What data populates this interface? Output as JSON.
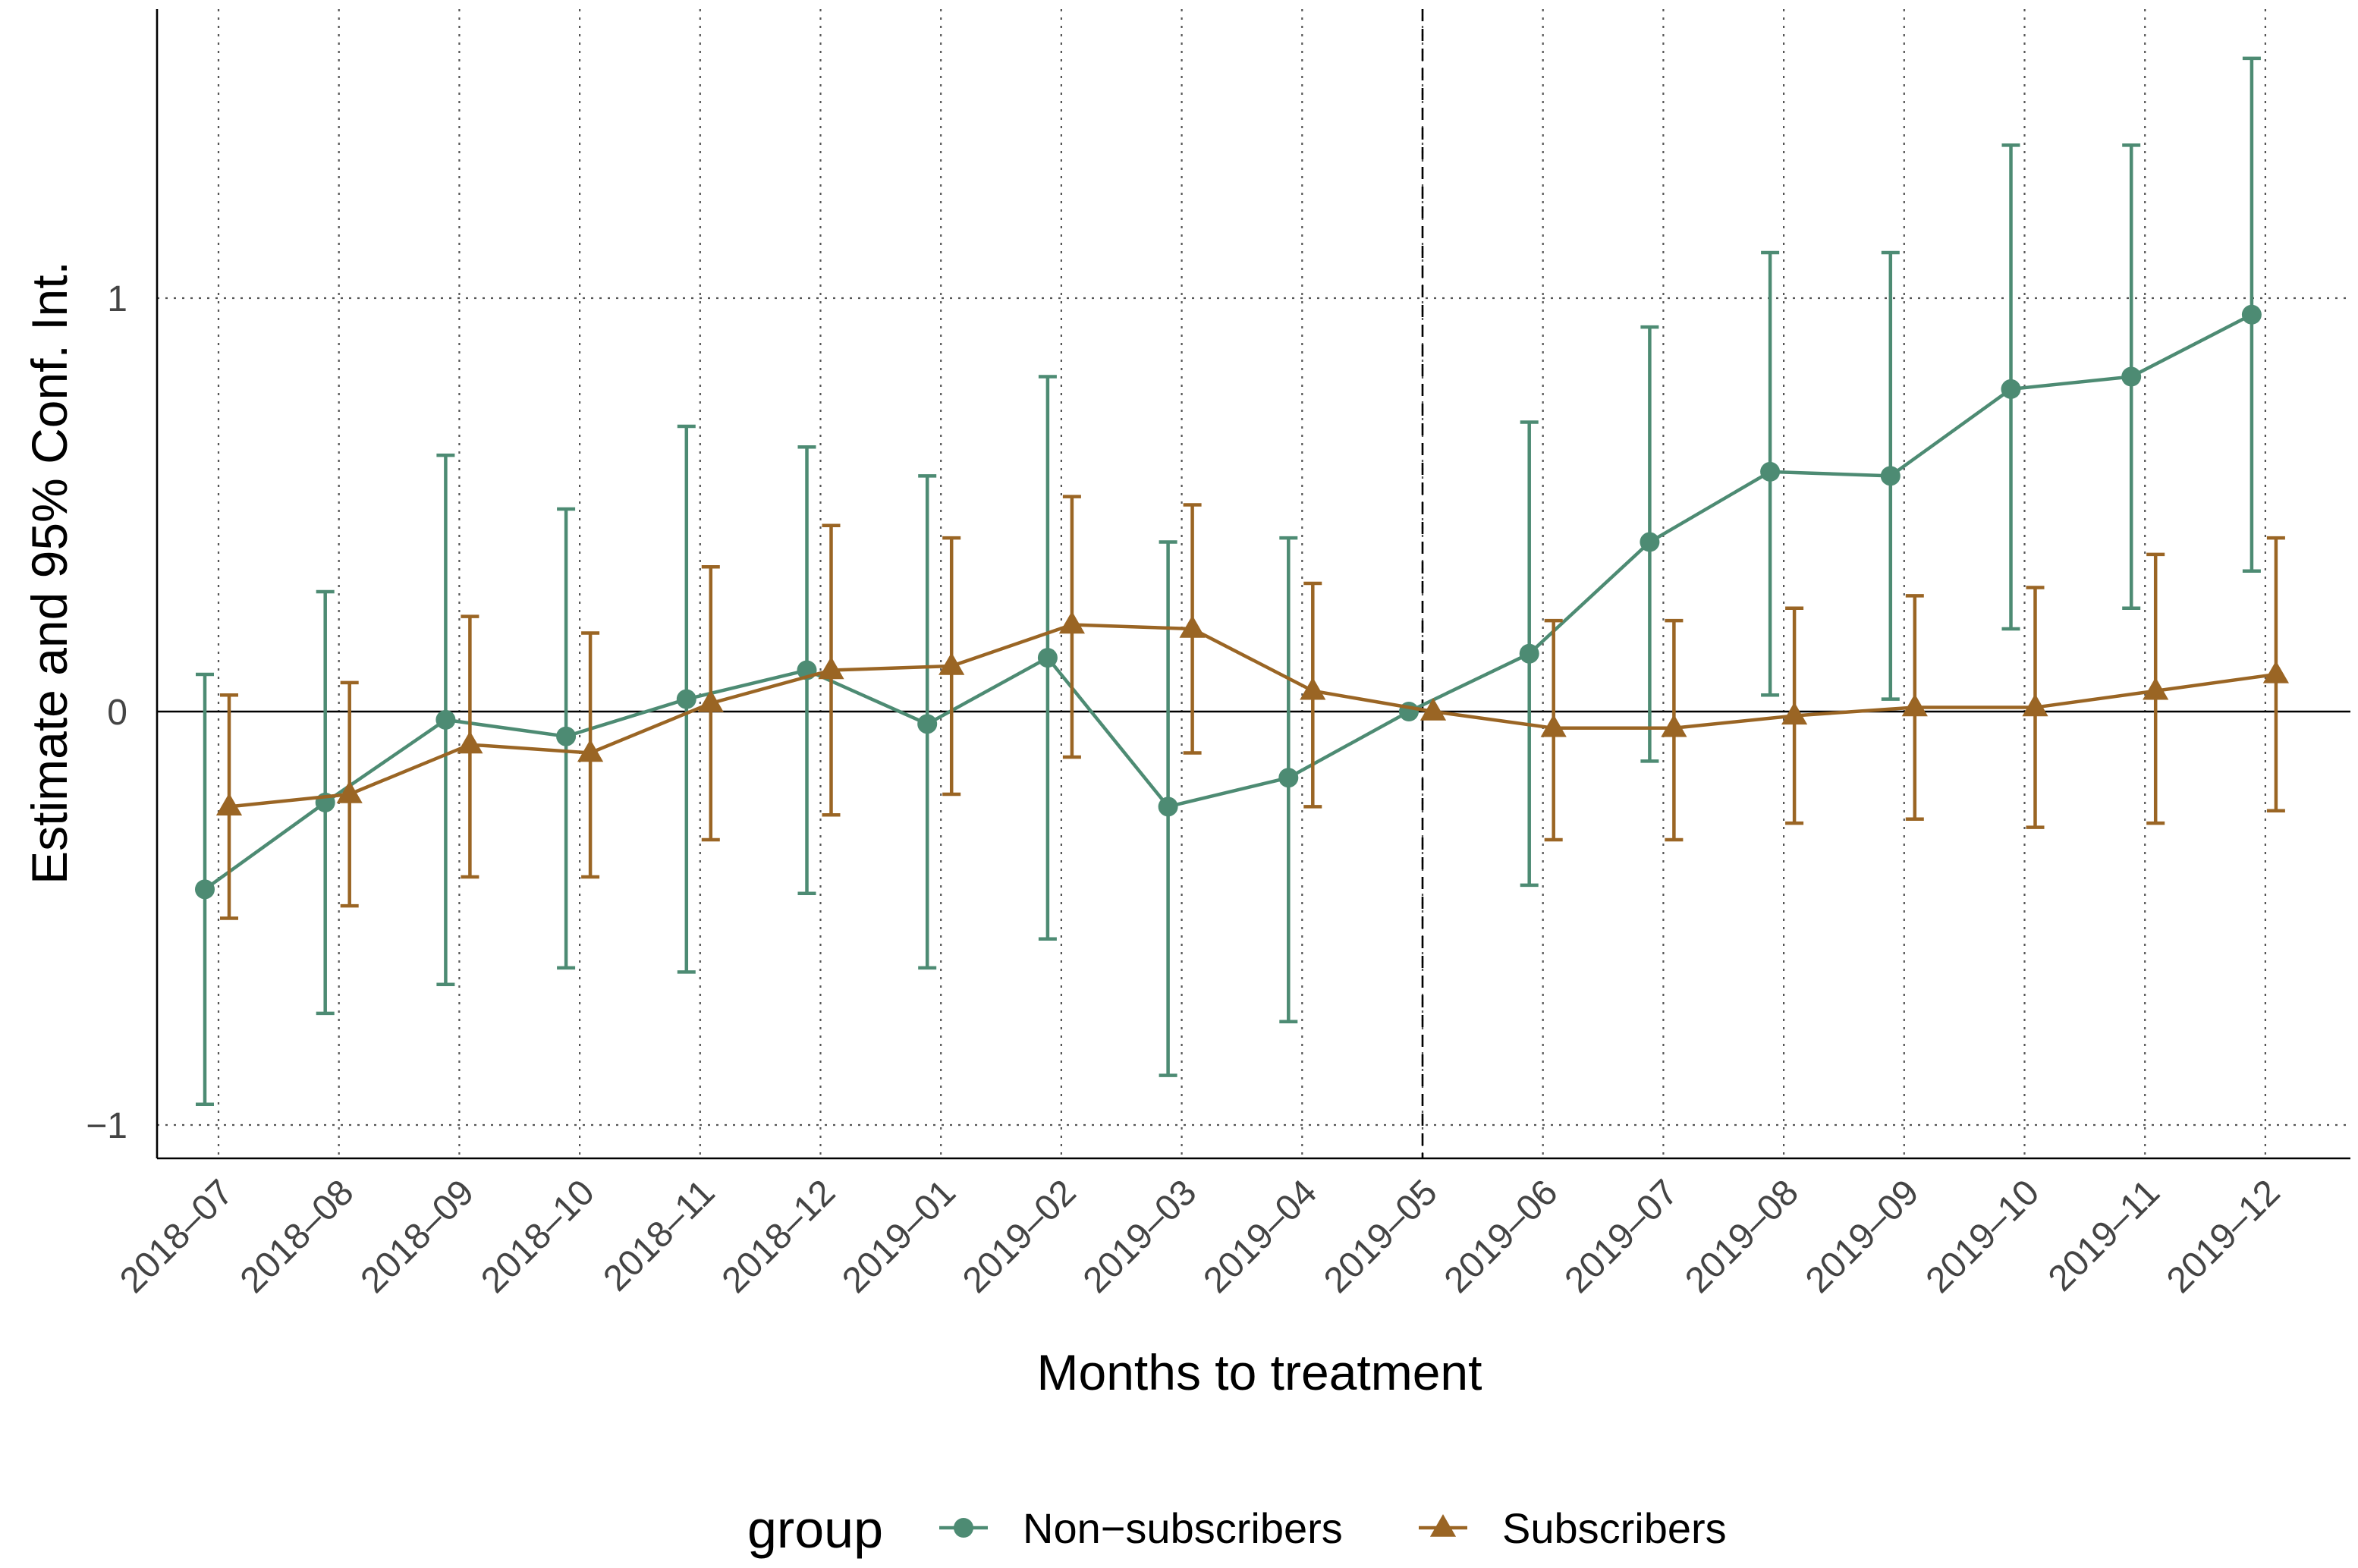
{
  "chart_data": {
    "type": "line",
    "title": "",
    "xlabel": "Months to treatment",
    "ylabel": "Estimate and 95% Conf. Int.",
    "categories": [
      "2018–07",
      "2018–08",
      "2018–09",
      "2018–10",
      "2018–11",
      "2018–12",
      "2019–01",
      "2019–02",
      "2019–03",
      "2019–04",
      "2019–05",
      "2019–06",
      "2019–07",
      "2019–08",
      "2019–09",
      "2019–10",
      "2019–11",
      "2019–12"
    ],
    "y_ticks": [
      {
        "value": -1,
        "label": "−1"
      },
      {
        "value": 0,
        "label": "0"
      },
      {
        "value": 1,
        "label": "1"
      }
    ],
    "ylim": [
      -1.08,
      1.7
    ],
    "reference_line": {
      "category": "2019–05",
      "style": "dashed"
    },
    "grid": "dotted",
    "legend": {
      "title": "group",
      "position": "bottom"
    },
    "series": [
      {
        "name": "Non−subscribers",
        "marker": "circle",
        "color": "#4d8b73",
        "values": [
          -0.43,
          -0.22,
          -0.02,
          -0.06,
          0.03,
          0.1,
          -0.03,
          0.13,
          -0.23,
          -0.16,
          0.0,
          0.14,
          0.41,
          0.58,
          0.57,
          0.78,
          0.81,
          0.96
        ],
        "lower": [
          -0.95,
          -0.73,
          -0.66,
          -0.62,
          -0.63,
          -0.44,
          -0.62,
          -0.55,
          -0.88,
          -0.75,
          0.0,
          -0.42,
          -0.12,
          0.04,
          0.03,
          0.2,
          0.25,
          0.34
        ],
        "upper": [
          0.09,
          0.29,
          0.62,
          0.49,
          0.69,
          0.64,
          0.57,
          0.81,
          0.41,
          0.42,
          0.0,
          0.7,
          0.93,
          1.11,
          1.11,
          1.37,
          1.37,
          1.58
        ]
      },
      {
        "name": "Subscribers",
        "marker": "triangle",
        "color": "#9a6524",
        "values": [
          -0.23,
          -0.2,
          -0.08,
          -0.1,
          0.02,
          0.1,
          0.11,
          0.21,
          0.2,
          0.05,
          0.0,
          -0.04,
          -0.04,
          -0.01,
          0.01,
          0.01,
          0.05,
          0.09
        ],
        "lower": [
          -0.5,
          -0.47,
          -0.4,
          -0.4,
          -0.31,
          -0.25,
          -0.2,
          -0.11,
          -0.1,
          -0.23,
          0.0,
          -0.31,
          -0.31,
          -0.27,
          -0.26,
          -0.28,
          -0.27,
          -0.24
        ],
        "upper": [
          0.04,
          0.07,
          0.23,
          0.19,
          0.35,
          0.45,
          0.42,
          0.52,
          0.5,
          0.31,
          0.0,
          0.22,
          0.22,
          0.25,
          0.28,
          0.3,
          0.38,
          0.42
        ]
      }
    ]
  }
}
